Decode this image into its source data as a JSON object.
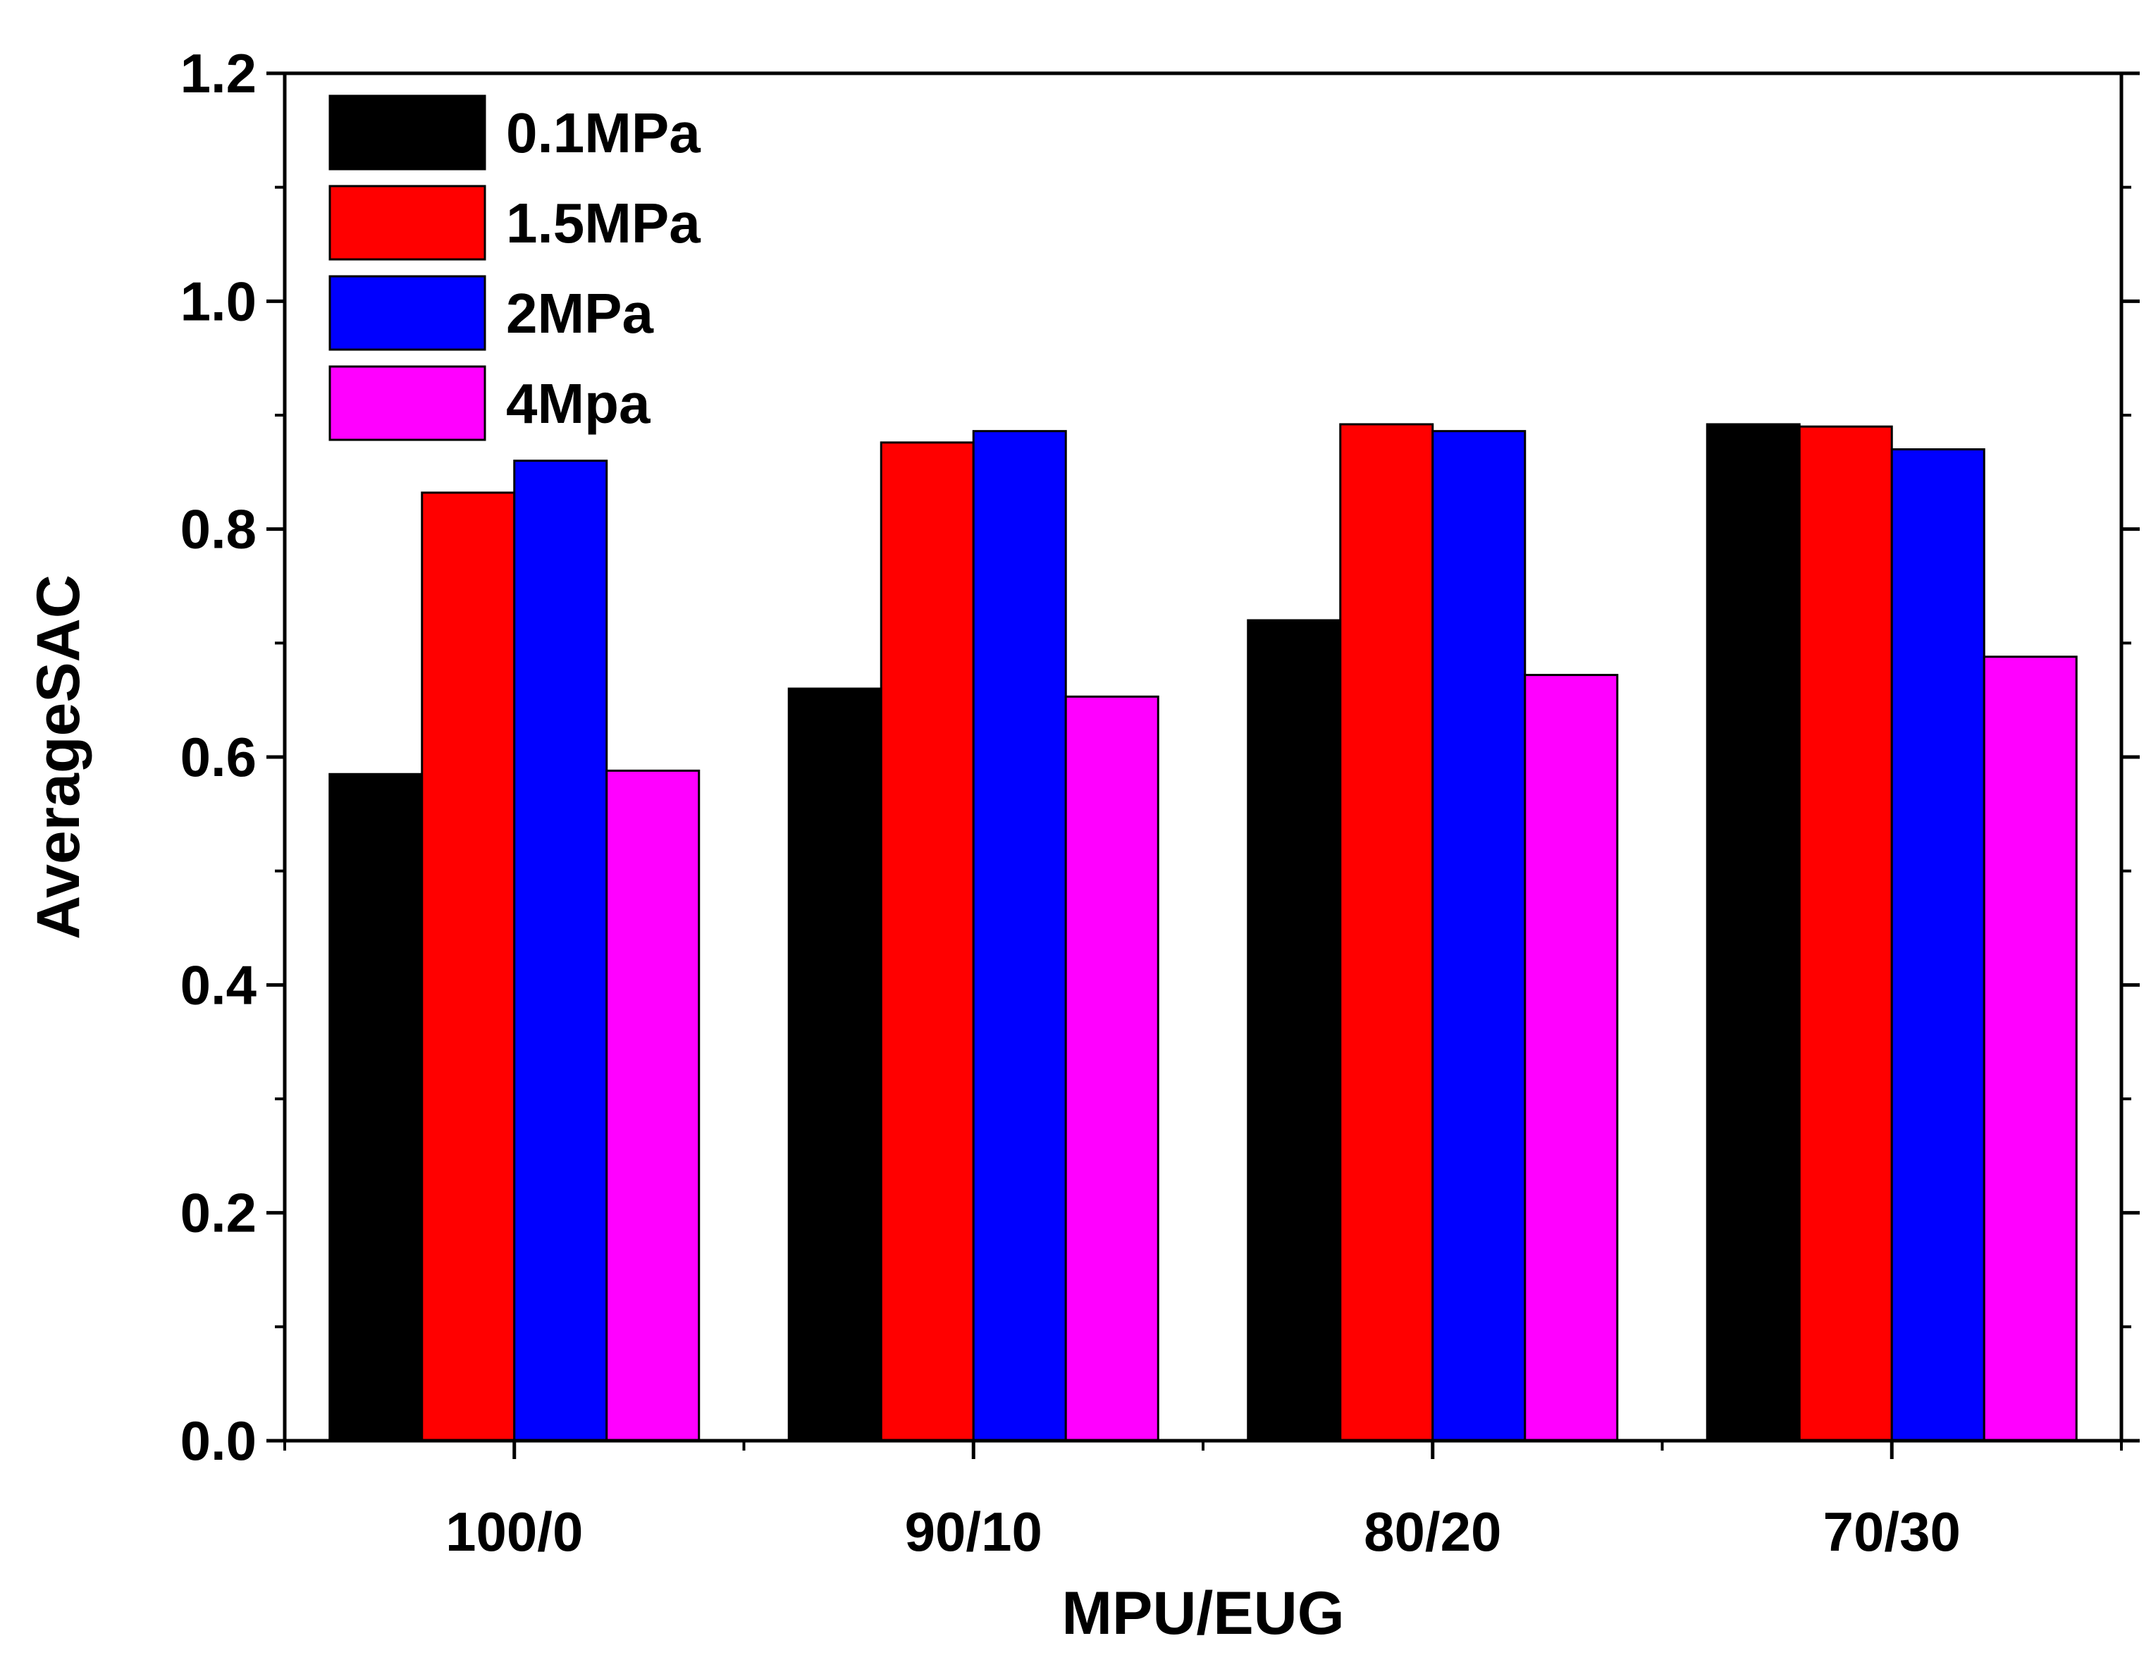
{
  "chart_data": {
    "type": "bar",
    "title": "",
    "xlabel": "MPU/EUG",
    "ylabel": "AverageSAC",
    "categories": [
      "100/0",
      "90/10",
      "80/20",
      "70/30"
    ],
    "ylim": [
      0.0,
      1.2
    ],
    "yticks": [
      0.0,
      0.2,
      0.4,
      0.6,
      0.8,
      1.0,
      1.2
    ],
    "ytick_labels": [
      "0.0",
      "0.2",
      "0.4",
      "0.6",
      "0.8",
      "1.0",
      "1.2"
    ],
    "grid": false,
    "legend_position": "top-left",
    "series": [
      {
        "name": "0.1MPa",
        "color": "#000000",
        "values": [
          0.585,
          0.66,
          0.72,
          0.892
        ]
      },
      {
        "name": "1.5MPa",
        "color": "#ff0000",
        "values": [
          0.832,
          0.876,
          0.892,
          0.89
        ]
      },
      {
        "name": "2MPa",
        "color": "#0000ff",
        "values": [
          0.86,
          0.886,
          0.886,
          0.87
        ]
      },
      {
        "name": "4Mpa",
        "color": "#ff00ff",
        "values": [
          0.588,
          0.653,
          0.672,
          0.688
        ]
      }
    ]
  }
}
